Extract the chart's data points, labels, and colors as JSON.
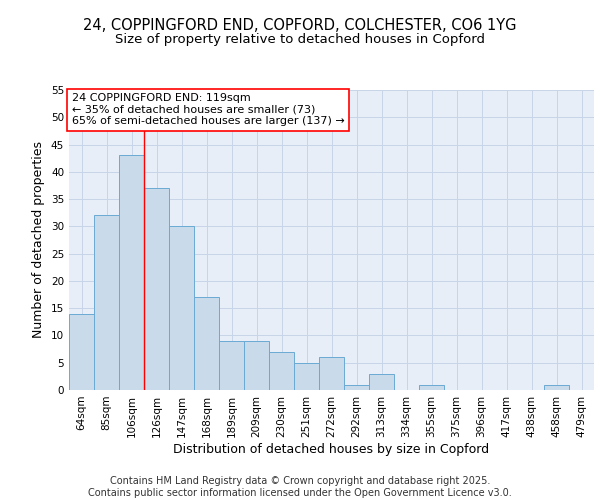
{
  "title_line1": "24, COPPINGFORD END, COPFORD, COLCHESTER, CO6 1YG",
  "title_line2": "Size of property relative to detached houses in Copford",
  "xlabel": "Distribution of detached houses by size in Copford",
  "ylabel": "Number of detached properties",
  "categories": [
    "64sqm",
    "85sqm",
    "106sqm",
    "126sqm",
    "147sqm",
    "168sqm",
    "189sqm",
    "209sqm",
    "230sqm",
    "251sqm",
    "272sqm",
    "292sqm",
    "313sqm",
    "334sqm",
    "355sqm",
    "375sqm",
    "396sqm",
    "417sqm",
    "438sqm",
    "458sqm",
    "479sqm"
  ],
  "values": [
    14,
    32,
    43,
    37,
    30,
    17,
    9,
    9,
    7,
    5,
    6,
    1,
    3,
    0,
    1,
    0,
    0,
    0,
    0,
    1,
    0
  ],
  "bar_color": "#c9daea",
  "bar_edge_color": "#6aaad4",
  "annotation_text": "24 COPPINGFORD END: 119sqm\n← 35% of detached houses are smaller (73)\n65% of semi-detached houses are larger (137) →",
  "annotation_box_color": "white",
  "annotation_box_edge_color": "red",
  "vline_x_index": 2.5,
  "vline_color": "red",
  "ylim": [
    0,
    55
  ],
  "yticks": [
    0,
    5,
    10,
    15,
    20,
    25,
    30,
    35,
    40,
    45,
    50,
    55
  ],
  "grid_color": "#c8d4e8",
  "background_color": "#e8eef8",
  "footer": "Contains HM Land Registry data © Crown copyright and database right 2025.\nContains public sector information licensed under the Open Government Licence v3.0.",
  "title_fontsize": 10.5,
  "subtitle_fontsize": 9.5,
  "axis_label_fontsize": 9,
  "tick_fontsize": 7.5,
  "annotation_fontsize": 8,
  "footer_fontsize": 7
}
